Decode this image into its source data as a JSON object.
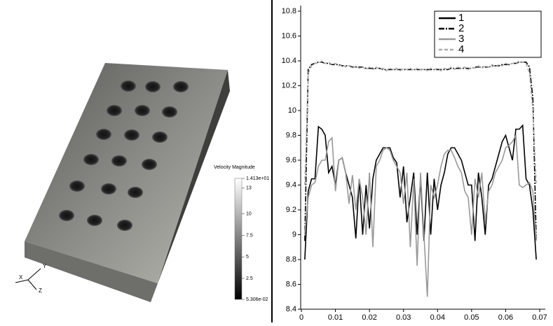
{
  "chart_data": [
    {
      "type": "line",
      "x": [
        0.001,
        0.002,
        0.003,
        0.004,
        0.005,
        0.006,
        0.007,
        0.008,
        0.009,
        0.01,
        0.011,
        0.012,
        0.013,
        0.014,
        0.015,
        0.016,
        0.017,
        0.018,
        0.019,
        0.02,
        0.021,
        0.022,
        0.023,
        0.024,
        0.025,
        0.026,
        0.027,
        0.028,
        0.029,
        0.03,
        0.031,
        0.032,
        0.033,
        0.034,
        0.035,
        0.036,
        0.037,
        0.038,
        0.039,
        0.04,
        0.041,
        0.042,
        0.043,
        0.044,
        0.045,
        0.046,
        0.047,
        0.048,
        0.049,
        0.05,
        0.051,
        0.052,
        0.053,
        0.054,
        0.055,
        0.056,
        0.057,
        0.058,
        0.059,
        0.06,
        0.061,
        0.062,
        0.063,
        0.064,
        0.065,
        0.066,
        0.067,
        0.068,
        0.069
      ],
      "series": [
        {
          "name": "1",
          "color": "#000000",
          "style": "solid",
          "values": [
            8.8,
            9.35,
            9.45,
            9.45,
            9.87,
            9.85,
            9.8,
            9.5,
            9.55,
            9.4,
            9.6,
            9.62,
            9.5,
            9.4,
            9.3,
            8.97,
            9.45,
            9.0,
            9.4,
            9.05,
            9.45,
            9.6,
            9.65,
            9.7,
            9.7,
            9.7,
            9.62,
            9.58,
            9.3,
            9.55,
            9.1,
            9.3,
            9.5,
            9.0,
            9.45,
            8.95,
            9.5,
            9.0,
            9.45,
            9.2,
            9.4,
            9.5,
            9.65,
            9.7,
            9.7,
            9.65,
            9.6,
            9.5,
            9.4,
            9.4,
            8.95,
            9.5,
            9.3,
            9.0,
            9.4,
            9.45,
            9.55,
            9.65,
            9.75,
            9.8,
            9.7,
            9.6,
            9.85,
            9.85,
            9.88,
            9.45,
            9.4,
            9.2,
            8.8
          ]
        },
        {
          "name": "2",
          "color": "#000000",
          "style": "dashdot",
          "values": [
            8.95,
            10.33,
            10.37,
            10.38,
            10.39,
            10.39,
            10.38,
            10.38,
            10.37,
            10.37,
            10.37,
            10.36,
            10.36,
            10.36,
            10.35,
            10.35,
            10.35,
            10.35,
            10.34,
            10.34,
            10.34,
            10.34,
            10.34,
            10.33,
            10.33,
            10.33,
            10.33,
            10.33,
            10.33,
            10.33,
            10.33,
            10.33,
            10.33,
            10.33,
            10.33,
            10.33,
            10.33,
            10.33,
            10.33,
            10.33,
            10.33,
            10.33,
            10.33,
            10.34,
            10.34,
            10.34,
            10.34,
            10.34,
            10.34,
            10.34,
            10.35,
            10.35,
            10.35,
            10.35,
            10.35,
            10.36,
            10.36,
            10.36,
            10.37,
            10.37,
            10.37,
            10.38,
            10.38,
            10.39,
            10.39,
            10.39,
            10.35,
            10.1,
            8.95
          ]
        },
        {
          "name": "3",
          "color": "#999999",
          "style": "solid",
          "values": [
            9.0,
            9.3,
            9.4,
            9.42,
            9.55,
            9.6,
            9.6,
            9.75,
            9.78,
            9.35,
            9.6,
            9.62,
            9.5,
            9.25,
            9.48,
            9.2,
            9.45,
            9.3,
            9.0,
            9.5,
            8.9,
            9.55,
            9.6,
            9.68,
            9.7,
            9.68,
            9.6,
            9.55,
            9.5,
            9.25,
            9.5,
            8.9,
            9.45,
            8.75,
            9.5,
            9.0,
            8.5,
            9.4,
            9.3,
            9.4,
            9.55,
            9.65,
            9.68,
            9.68,
            9.62,
            9.55,
            9.5,
            9.35,
            9.3,
            9.0,
            9.45,
            9.3,
            9.5,
            9.1,
            9.35,
            9.4,
            9.5,
            9.55,
            9.6,
            9.7,
            9.72,
            9.75,
            9.8,
            9.4,
            9.38,
            9.4,
            9.42,
            9.35,
            8.95
          ]
        },
        {
          "name": "4",
          "color": "#aaaaaa",
          "style": "dashed",
          "values": [
            9.4,
            10.3,
            10.36,
            10.38,
            10.38,
            10.4,
            10.38,
            10.39,
            10.37,
            10.38,
            10.36,
            10.37,
            10.35,
            10.36,
            10.34,
            10.36,
            10.34,
            10.35,
            10.33,
            10.35,
            10.33,
            10.35,
            10.33,
            10.34,
            10.32,
            10.34,
            10.33,
            10.34,
            10.32,
            10.34,
            10.33,
            10.34,
            10.32,
            10.34,
            10.33,
            10.34,
            10.32,
            10.34,
            10.33,
            10.34,
            10.32,
            10.34,
            10.33,
            10.35,
            10.33,
            10.35,
            10.34,
            10.35,
            10.33,
            10.35,
            10.34,
            10.36,
            10.34,
            10.36,
            10.35,
            10.37,
            10.35,
            10.37,
            10.36,
            10.38,
            10.37,
            10.38,
            10.38,
            10.4,
            10.39,
            10.38,
            10.3,
            10.0,
            9.4
          ]
        }
      ],
      "xlim": [
        0,
        0.07
      ],
      "xticks": [
        0,
        0.01,
        0.02,
        0.03,
        0.04,
        0.05,
        0.06,
        0.07
      ],
      "ylim": [
        8.4,
        10.8
      ],
      "yticks": [
        8.4,
        8.6,
        8.8,
        9,
        9.2,
        9.4,
        9.6,
        9.8,
        10,
        10.2,
        10.4,
        10.6,
        10.8
      ],
      "legend": "upper right"
    },
    {
      "type": "colorbar",
      "title": "Velocity Magnitude",
      "ylim": [
        0.05306,
        14.13
      ],
      "yticks": [
        {
          "value": 14.13,
          "label": "1.413e+01"
        },
        13,
        10,
        7.5,
        5,
        2.5,
        {
          "value": 0.05306,
          "label": "5.306e-02"
        }
      ],
      "colors": [
        "#ffffff",
        "#000000"
      ]
    }
  ],
  "axes_triad": {
    "y": "Y",
    "x": "X",
    "z": "Z"
  }
}
